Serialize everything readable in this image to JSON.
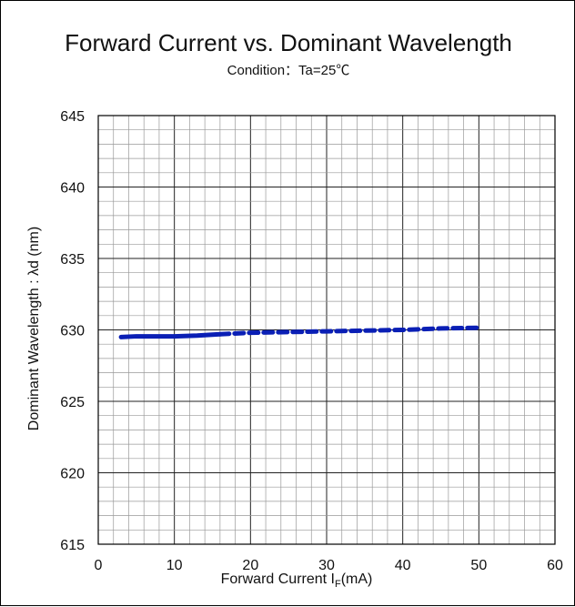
{
  "chart_data": {
    "type": "line",
    "title": "Forward Current vs. Dominant Wavelength",
    "subtitle": "Condition：Ta=25℃",
    "xlabel": "Forward Current I",
    "xlabel_sub": "F",
    "xlabel_unit": "(mA)",
    "ylabel": "Dominant Wavelength : λd (nm)",
    "xlim": [
      0,
      60
    ],
    "ylim": [
      615,
      645
    ],
    "x_ticks": [
      "0",
      "10",
      "20",
      "30",
      "40",
      "50",
      "60"
    ],
    "y_ticks": [
      "615",
      "620",
      "625",
      "630",
      "635",
      "640",
      "645"
    ],
    "grid": true,
    "line_color": "#0a1fb5",
    "series": [
      {
        "style": "solid",
        "x": [
          3,
          5,
          7,
          10,
          13,
          16
        ],
        "y": [
          629.5,
          629.55,
          629.55,
          629.55,
          629.6,
          629.7
        ]
      },
      {
        "style": "dashed",
        "x": [
          16,
          20,
          25,
          30,
          35,
          40,
          45,
          50
        ],
        "y": [
          629.7,
          629.8,
          629.85,
          629.9,
          629.95,
          630.0,
          630.1,
          630.15
        ]
      }
    ]
  }
}
